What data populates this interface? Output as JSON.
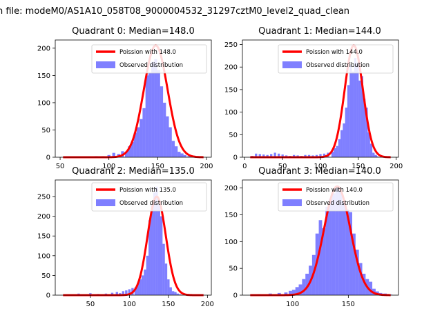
{
  "colors": {
    "observed": "#0000ff",
    "poisson": "#ff0000",
    "frame": "#000000",
    "background": "#ffffff"
  },
  "chart_data": {
    "suptitle": "n file: modeM0/AS1A10_058T08_9000004532_31297cztM0_level2_quad_clean",
    "panels": [
      {
        "type": "bar",
        "title": "Quadrant 0: Median=148.0",
        "median": 148.0,
        "xlim": [
          45,
          205
        ],
        "ylim": [
          0,
          215
        ],
        "xticks": [
          50,
          100,
          150,
          200
        ],
        "yticks": [
          0,
          50,
          100,
          150,
          200
        ],
        "legend": {
          "placement": "top-right",
          "poisson_label": "Poission with 148.0",
          "observed_label": "Observed distribution"
        },
        "hist": {
          "x": [
            118,
            121,
            124,
            127,
            130,
            133,
            136,
            139,
            142,
            145,
            148,
            151,
            154,
            157,
            160,
            163,
            166,
            169,
            172,
            175,
            178
          ],
          "counts": [
            10,
            20,
            28,
            45,
            55,
            70,
            90,
            150,
            155,
            175,
            180,
            160,
            130,
            100,
            75,
            55,
            30,
            20,
            10,
            7,
            4
          ],
          "width": 3
        },
        "noise": [
          [
            56,
            1
          ],
          [
            66,
            1
          ],
          [
            78,
            1
          ],
          [
            87,
            2
          ],
          [
            94,
            2
          ],
          [
            100,
            4
          ],
          [
            105,
            8
          ],
          [
            110,
            6
          ],
          [
            114,
            11
          ],
          [
            182,
            2
          ],
          [
            188,
            1
          ]
        ],
        "poisson": {
          "mu": 148.0,
          "peak": 205
        }
      },
      {
        "type": "bar",
        "title": "Quadrant 1: Median=144.0",
        "median": 144.0,
        "xlim": [
          -3,
          203
        ],
        "ylim": [
          0,
          260
        ],
        "xticks": [
          0,
          50,
          100,
          150,
          200
        ],
        "yticks": [
          0,
          50,
          100,
          150,
          200,
          250
        ],
        "legend": {
          "placement": "top-right",
          "poisson_label": "Poission with 144.0",
          "observed_label": "Observed distribution"
        },
        "hist": {
          "x": [
            116,
            119,
            122,
            125,
            128,
            131,
            134,
            137,
            140,
            143,
            146,
            149,
            152,
            155,
            158,
            161,
            164,
            167,
            170,
            173
          ],
          "counts": [
            12,
            20,
            25,
            40,
            60,
            75,
            110,
            160,
            205,
            190,
            220,
            210,
            170,
            180,
            130,
            110,
            55,
            30,
            10,
            5
          ],
          "width": 3
        },
        "noise": [
          [
            10,
            3
          ],
          [
            15,
            8
          ],
          [
            20,
            7
          ],
          [
            25,
            6
          ],
          [
            30,
            5
          ],
          [
            35,
            7
          ],
          [
            40,
            10
          ],
          [
            45,
            8
          ],
          [
            50,
            6
          ],
          [
            55,
            4
          ],
          [
            60,
            3
          ],
          [
            65,
            5
          ],
          [
            70,
            4
          ],
          [
            75,
            3
          ],
          [
            80,
            5
          ],
          [
            85,
            5
          ],
          [
            90,
            4
          ],
          [
            95,
            5
          ],
          [
            100,
            7
          ],
          [
            105,
            8
          ],
          [
            110,
            10
          ],
          [
            175,
            2
          ],
          [
            180,
            1
          ]
        ],
        "poisson": {
          "mu": 144.0,
          "peak": 248
        }
      },
      {
        "type": "bar",
        "title": "Quadrant 2: Median=135.0",
        "median": 135.0,
        "xlim": [
          5,
          205
        ],
        "ylim": [
          0,
          292
        ],
        "xticks": [
          50,
          100,
          150,
          200
        ],
        "yticks": [
          0,
          50,
          100,
          150,
          200,
          250
        ],
        "legend": {
          "placement": "top-right",
          "poisson_label": "Poission with 135.0",
          "observed_label": "Observed distribution"
        },
        "hist": {
          "x": [
            108,
            111,
            114,
            117,
            120,
            123,
            126,
            129,
            132,
            135,
            138,
            141,
            144,
            147,
            150,
            153,
            156,
            159,
            162,
            165
          ],
          "counts": [
            20,
            30,
            40,
            50,
            65,
            100,
            190,
            230,
            260,
            275,
            230,
            200,
            130,
            80,
            40,
            20,
            10,
            8,
            4,
            2
          ],
          "width": 3
        },
        "noise": [
          [
            20,
            2
          ],
          [
            35,
            4
          ],
          [
            50,
            5
          ],
          [
            60,
            3
          ],
          [
            70,
            4
          ],
          [
            78,
            6
          ],
          [
            84,
            8
          ],
          [
            88,
            5
          ],
          [
            92,
            10
          ],
          [
            96,
            12
          ],
          [
            100,
            15
          ],
          [
            104,
            18
          ],
          [
            172,
            3
          ],
          [
            180,
            2
          ],
          [
            190,
            1
          ]
        ],
        "poisson": {
          "mu": 135.0,
          "peak": 250
        }
      },
      {
        "type": "bar",
        "title": "Quadrant 3: Median=140.0",
        "median": 140.0,
        "xlim": [
          55,
          195
        ],
        "ylim": [
          0,
          215
        ],
        "xticks": [
          100,
          150
        ],
        "yticks": [
          0,
          50,
          100,
          150,
          200
        ],
        "legend": {
          "placement": "top-right",
          "poisson_label": "Poission with 140.0",
          "observed_label": "Observed distribution"
        },
        "hist": {
          "x": [
            104,
            107,
            110,
            113,
            116,
            119,
            122,
            125,
            128,
            131,
            134,
            137,
            140,
            143,
            146,
            149,
            152,
            155,
            158,
            161,
            164,
            167,
            170,
            173,
            176
          ],
          "counts": [
            15,
            20,
            30,
            40,
            55,
            75,
            115,
            140,
            125,
            165,
            180,
            190,
            200,
            195,
            175,
            160,
            155,
            115,
            85,
            60,
            40,
            30,
            25,
            12,
            7
          ],
          "width": 3
        },
        "noise": [
          [
            70,
            2
          ],
          [
            80,
            3
          ],
          [
            88,
            4
          ],
          [
            94,
            5
          ],
          [
            98,
            8
          ],
          [
            101,
            10
          ],
          [
            179,
            4
          ],
          [
            183,
            3
          ],
          [
            188,
            1
          ]
        ],
        "poisson": {
          "mu": 140.0,
          "peak": 203
        }
      }
    ]
  }
}
